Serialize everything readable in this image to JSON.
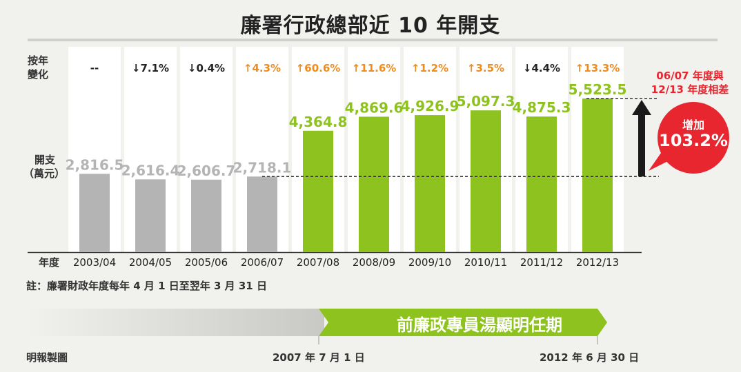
{
  "title": "廉署行政總部近 10 年開支",
  "row_labels": {
    "change": [
      "按年",
      "變化"
    ],
    "expense": [
      "開支",
      "（萬元）"
    ],
    "year": "年度"
  },
  "note": "註：廉署財政年度每年 4 月 1 日至翌年 3 月 31 日",
  "comparison": {
    "label": [
      "06/07 年度與",
      "12/13 年度相差"
    ],
    "bubble_top": "增加",
    "bubble_value": "103.2%"
  },
  "timeline": {
    "label": "前廉政專員湯顯明任期",
    "start": "2007 年 7 月 1 日",
    "end": "2012 年 6 月 30 日"
  },
  "credit": "明報製圖",
  "colors": {
    "gray_bar": "#b4b4b4",
    "green_bar": "#8dc21f",
    "up": "#f08b1d",
    "down": "#222222",
    "accent_red": "#e8262f",
    "column_band": "#ffffff"
  },
  "chart_data": {
    "type": "bar",
    "categories": [
      "2003/04",
      "2004/05",
      "2005/06",
      "2006/07",
      "2007/08",
      "2008/09",
      "2009/10",
      "2010/11",
      "2011/12",
      "2012/13"
    ],
    "values": [
      2816.5,
      2616.4,
      2606.7,
      2718.1,
      4364.8,
      4869.6,
      4926.9,
      5097.3,
      4875.3,
      5523.5
    ],
    "value_labels": [
      "2,816.5",
      "2,616.4",
      "2,606.7",
      "2,718.1",
      "4,364.8",
      "4,869.6",
      "4,926.9",
      "5,097.3",
      "4,875.3",
      "5,523.5"
    ],
    "yoy_change": [
      "--",
      "↓7.1%",
      "↓0.4%",
      "↑4.3%",
      "↑60.6%",
      "↑11.6%",
      "↑1.2%",
      "↑3.5%",
      "↓4.4%",
      "↑13.3%"
    ],
    "yoy_direction": [
      "none",
      "down",
      "down",
      "up",
      "up",
      "up",
      "up",
      "up",
      "down",
      "up"
    ],
    "bar_color": [
      "gray",
      "gray",
      "gray",
      "gray",
      "green",
      "green",
      "green",
      "green",
      "green",
      "green"
    ],
    "title": "廉署行政總部近 10 年開支",
    "xlabel": "年度",
    "ylabel": "開支（萬元）",
    "ylim": [
      0,
      5600
    ],
    "grid": false
  }
}
